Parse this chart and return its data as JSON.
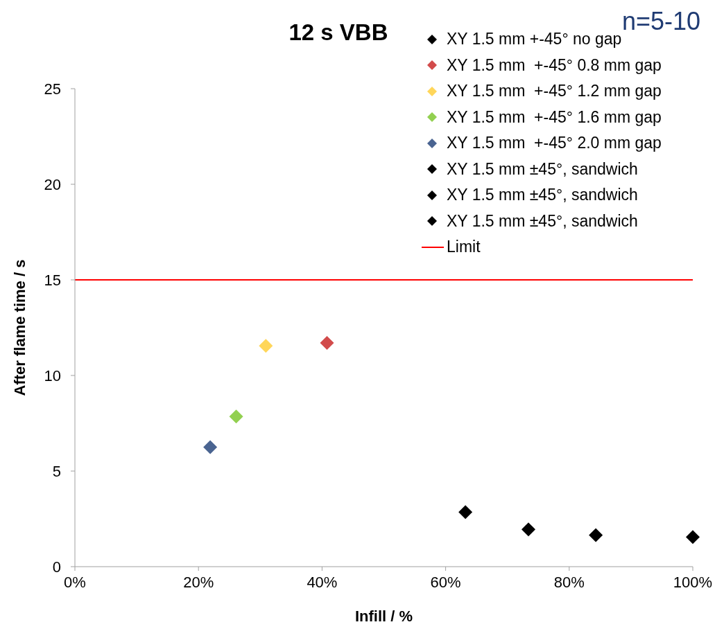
{
  "chart_data": {
    "type": "scatter",
    "title": "12 s VBB",
    "xlabel": "Infill / %",
    "ylabel": "After flame time / s",
    "annotations": [
      "n=5-10"
    ],
    "xlim": [
      0,
      100
    ],
    "xticks": [
      {
        "value": 0,
        "label": "0%"
      },
      {
        "value": 20,
        "label": "20%"
      },
      {
        "value": 40,
        "label": "40%"
      },
      {
        "value": 60,
        "label": "60%"
      },
      {
        "value": 80,
        "label": "80%"
      },
      {
        "value": 100,
        "label": "100%"
      }
    ],
    "ylim": [
      0,
      25
    ],
    "yticks": [
      0,
      5,
      10,
      15,
      20,
      25
    ],
    "grid": false,
    "legend": "top right",
    "marker": "diamond",
    "series": [
      {
        "name": "XY 1.5 mm +-45° no gap",
        "color": "#000000",
        "x": [
          100
        ],
        "values": [
          1.55
        ]
      },
      {
        "name": "XY 1.5 mm  +-45° 0.8 mm gap",
        "color": "#d24b4b",
        "x": [
          40.8
        ],
        "values": [
          11.7
        ]
      },
      {
        "name": "XY 1.5 mm  +-45° 1.2 mm gap",
        "color": "#ffd65a",
        "x": [
          30.9
        ],
        "values": [
          11.55
        ]
      },
      {
        "name": "XY 1.5 mm  +-45° 1.6 mm gap",
        "color": "#92d050",
        "x": [
          26.1
        ],
        "values": [
          7.85
        ]
      },
      {
        "name": "XY 1.5 mm  +-45° 2.0 mm gap",
        "color": "#4a6491",
        "x": [
          21.9
        ],
        "values": [
          6.25
        ]
      },
      {
        "name": "XY 1.5 mm ±45°, sandwich",
        "color": "#000000",
        "x": [
          84.3
        ],
        "values": [
          1.65
        ]
      },
      {
        "name": "XY 1.5 mm ±45°, sandwich",
        "color": "#000000",
        "x": [
          73.4
        ],
        "values": [
          1.95
        ]
      },
      {
        "name": "XY 1.5 mm ±45°, sandwich",
        "color": "#000000",
        "x": [
          63.2
        ],
        "values": [
          2.85
        ]
      }
    ],
    "ref_lines": [
      {
        "axis": "y",
        "value": 15,
        "label": "Limit",
        "color": "#ff0000"
      }
    ]
  }
}
